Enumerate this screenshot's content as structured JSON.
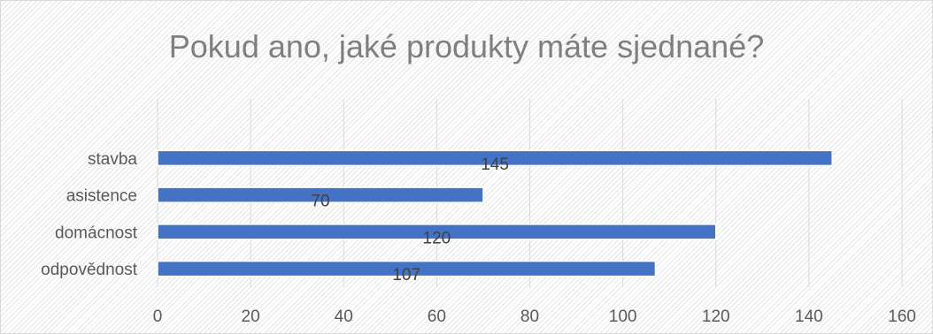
{
  "chart_data": {
    "type": "bar",
    "orientation": "horizontal",
    "title": "Pokud ano, jaké produkty máte sjednané?",
    "categories": [
      "stavba",
      "asistence",
      "domácnost",
      "odpovědnost"
    ],
    "values": [
      145,
      70,
      120,
      107
    ],
    "xlim": [
      0,
      160
    ],
    "x_ticks": [
      0,
      20,
      40,
      60,
      80,
      100,
      120,
      140,
      160
    ],
    "grid": true,
    "legend": "none",
    "bar_color": "#4472c4",
    "data_labels": true
  }
}
